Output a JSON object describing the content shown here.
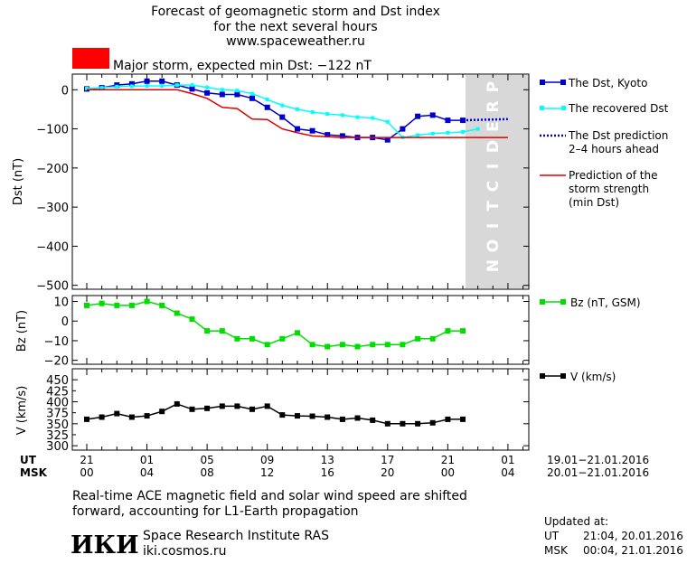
{
  "header": {
    "title_line1": "Forecast of geomagnetic storm and Dst index",
    "title_line2": "for the next several hours",
    "website": "www.spaceweather.ru"
  },
  "storm": {
    "color": "#ff0000",
    "label": "Major storm, expected min Dst: −122 nT"
  },
  "legend": {
    "dst_kyoto": "The Dst, Kyoto",
    "recovered": "The recovered Dst",
    "prediction_line1": "The Dst prediction",
    "prediction_line2": "2–4 hours ahead",
    "strength_line1": "Prediction of the",
    "strength_line2": "storm strength",
    "strength_line3": "(min Dst)",
    "bz": "Bz (nT, GSM)",
    "v": "V (km/s)"
  },
  "prediction_band_text": "PREDICTION",
  "time_axis": {
    "ut_label": "UT",
    "msk_label": "MSK",
    "ut_ticks": [
      "21",
      "01",
      "05",
      "09",
      "13",
      "17",
      "21",
      "01"
    ],
    "msk_ticks": [
      "00",
      "04",
      "08",
      "12",
      "16",
      "20",
      "00",
      "04"
    ],
    "ut_range": "19.01−21.01.2016",
    "msk_range": "20.01−21.01.2016"
  },
  "footer": {
    "note_line1": "Real-time ACE magnetic field and solar wind speed are shifted",
    "note_line2": "forward, accounting for L1-Earth propagation",
    "logo_text": "ИКИ",
    "institute": "Space Research Institute RAS",
    "institute_url": "iki.cosmos.ru",
    "updated_label": "Updated at:",
    "updated_ut_label": "UT",
    "updated_ut": "21:04, 20.01.2016",
    "updated_msk_label": "MSK",
    "updated_msk": "00:04, 21.01.2016"
  },
  "chart_data": [
    {
      "type": "line",
      "ylabel": "Dst (nT)",
      "xrange_hours": [
        0,
        28
      ],
      "ylim": [
        -510,
        40
      ],
      "yticks": [
        0,
        -100,
        -200,
        -300,
        -400,
        -500
      ],
      "prediction_band_hours": [
        25,
        29
      ],
      "series": [
        {
          "name": "The Dst, Kyoto",
          "color": "#0000cc",
          "x": [
            0,
            1,
            2,
            3,
            4,
            5,
            6,
            7,
            8,
            9,
            10,
            11,
            12,
            13,
            14,
            15,
            16,
            17,
            18,
            19,
            20,
            21,
            22,
            23,
            24,
            25
          ],
          "y": [
            2,
            5,
            12,
            15,
            22,
            22,
            12,
            2,
            -8,
            -12,
            -12,
            -22,
            -45,
            -70,
            -100,
            -105,
            -115,
            -118,
            -122,
            -122,
            -128,
            -100,
            -68,
            -65,
            -78,
            -78
          ]
        },
        {
          "name": "The recovered Dst",
          "color": "#00ffff",
          "x": [
            0,
            1,
            2,
            3,
            4,
            5,
            6,
            7,
            8,
            9,
            10,
            11,
            12,
            13,
            14,
            15,
            16,
            17,
            18,
            19,
            20,
            21,
            22,
            23,
            24,
            25,
            26
          ],
          "y": [
            3,
            5,
            8,
            9,
            10,
            10,
            12,
            12,
            6,
            0,
            -2,
            -10,
            -25,
            -40,
            -50,
            -57,
            -62,
            -65,
            -70,
            -72,
            -82,
            -122,
            -116,
            -112,
            -110,
            -108,
            -100
          ]
        },
        {
          "name": "The Dst prediction 2–4 hours ahead",
          "color": "#0000cc",
          "x": [
            25,
            26,
            27,
            28
          ],
          "y": [
            -78,
            -77,
            -76,
            -75
          ]
        },
        {
          "name": "Prediction of the storm strength (min Dst)",
          "color": "#e00000",
          "x": [
            0,
            1,
            2,
            3,
            4,
            5,
            6,
            7,
            8,
            9,
            10,
            11,
            12,
            13,
            14,
            15,
            16,
            17,
            18,
            19,
            20,
            21,
            22,
            23,
            24,
            25,
            26,
            27,
            28
          ],
          "y": [
            0,
            0,
            0,
            0,
            0,
            0,
            0,
            -10,
            -22,
            -45,
            -48,
            -75,
            -76,
            -100,
            -110,
            -118,
            -120,
            -122,
            -122,
            -122,
            -122,
            -122,
            -122,
            -122,
            -122,
            -122,
            -122,
            -122,
            -122
          ]
        }
      ]
    },
    {
      "type": "line",
      "ylabel": "Bz (nT)",
      "xrange_hours": [
        0,
        28
      ],
      "ylim": [
        -22,
        13
      ],
      "yticks": [
        10,
        0,
        -10,
        -20
      ],
      "series": [
        {
          "name": "Bz (nT, GSM)",
          "color": "#00dd00",
          "x": [
            0,
            1,
            2,
            3,
            4,
            5,
            6,
            7,
            8,
            9,
            10,
            11,
            12,
            13,
            14,
            15,
            16,
            17,
            18,
            19,
            20,
            21,
            22,
            23,
            24,
            25
          ],
          "y": [
            8,
            9,
            8,
            8,
            10,
            8,
            4,
            1,
            -5,
            -5,
            -9,
            -9,
            -12,
            -9,
            -6,
            -12,
            -13,
            -12,
            -13,
            -12,
            -12,
            -12,
            -9,
            -9,
            -5,
            -5
          ]
        }
      ]
    },
    {
      "type": "line",
      "ylabel": "V (km/s)",
      "xrange_hours": [
        0,
        28
      ],
      "ylim": [
        290,
        475
      ],
      "yticks": [
        450,
        400,
        350,
        300
      ],
      "extra_tick_labels": [
        425,
        375,
        325
      ],
      "series": [
        {
          "name": "V (km/s)",
          "color": "#000000",
          "x": [
            0,
            1,
            2,
            3,
            4,
            5,
            6,
            7,
            8,
            9,
            10,
            11,
            12,
            13,
            14,
            15,
            16,
            17,
            18,
            19,
            20,
            21,
            22,
            23,
            24,
            25
          ],
          "y": [
            360,
            365,
            373,
            365,
            368,
            378,
            395,
            383,
            385,
            390,
            390,
            383,
            390,
            370,
            368,
            367,
            365,
            360,
            363,
            358,
            350,
            350,
            350,
            352,
            360,
            360
          ]
        }
      ]
    }
  ]
}
